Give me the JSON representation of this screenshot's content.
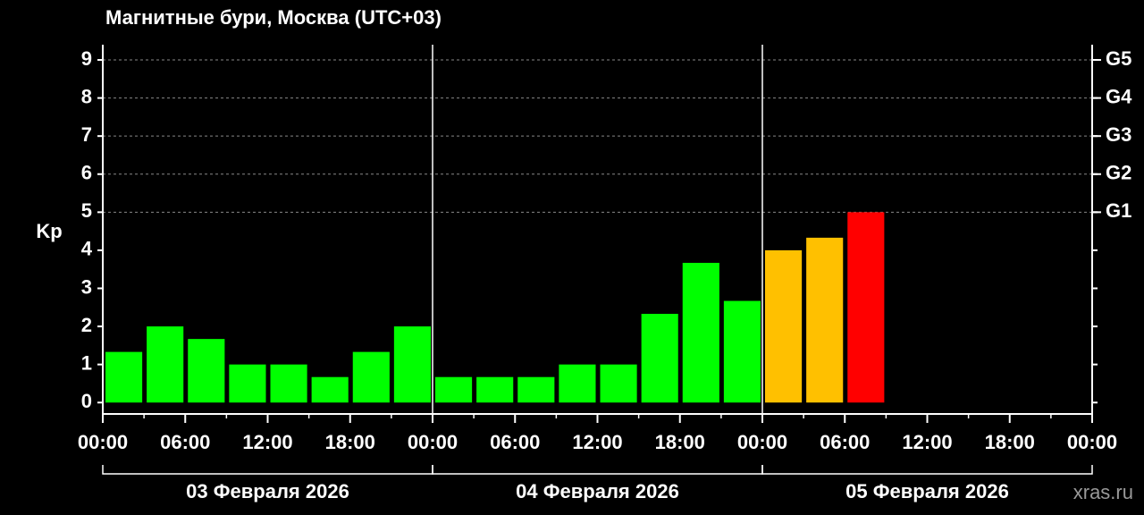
{
  "chart_data": {
    "type": "bar",
    "title": "Магнитные бури, Москва (UTC+03)",
    "y_label": "Kp",
    "x": [
      0,
      3,
      6,
      9,
      12,
      15,
      18,
      21,
      24,
      27,
      30,
      33,
      36,
      39,
      42,
      45,
      48,
      51,
      54
    ],
    "values": [
      1.33,
      2,
      1.67,
      1,
      1,
      0.67,
      1.33,
      2,
      0.67,
      0.67,
      0.67,
      1,
      1,
      2.33,
      3.67,
      2.67,
      4,
      4.33,
      5
    ],
    "colors": [
      "#00ff00",
      "#00ff00",
      "#00ff00",
      "#00ff00",
      "#00ff00",
      "#00ff00",
      "#00ff00",
      "#00ff00",
      "#00ff00",
      "#00ff00",
      "#00ff00",
      "#00ff00",
      "#00ff00",
      "#00ff00",
      "#00ff00",
      "#00ff00",
      "#ffc000",
      "#ffc000",
      "#ff0000"
    ],
    "xlim": [
      0,
      72
    ],
    "xticks": [
      {
        "value": 0,
        "label": "00:00"
      },
      {
        "value": 6,
        "label": "06:00"
      },
      {
        "value": 12,
        "label": "12:00"
      },
      {
        "value": 18,
        "label": "18:00"
      },
      {
        "value": 24,
        "label": "00:00"
      },
      {
        "value": 30,
        "label": "06:00"
      },
      {
        "value": 36,
        "label": "12:00"
      },
      {
        "value": 42,
        "label": "18:00"
      },
      {
        "value": 48,
        "label": "00:00"
      },
      {
        "value": 54,
        "label": "06:00"
      },
      {
        "value": 60,
        "label": "12:00"
      },
      {
        "value": 66,
        "label": "18:00"
      },
      {
        "value": 72,
        "label": "00:00"
      }
    ],
    "days": [
      "03 Февраля 2026",
      "04 Февраля 2026",
      "05 Февраля 2026"
    ],
    "ylim": [
      -0.3,
      9.4
    ],
    "yticks": [
      0,
      1,
      2,
      3,
      4,
      5,
      6,
      7,
      8,
      9
    ],
    "y2ticks": [
      {
        "value": 5,
        "label": "G1"
      },
      {
        "value": 6,
        "label": "G2"
      },
      {
        "value": 7,
        "label": "G3"
      },
      {
        "value": 8,
        "label": "G4"
      },
      {
        "value": 9,
        "label": "G5"
      }
    ],
    "grid": true,
    "watermark": "xras.ru"
  }
}
